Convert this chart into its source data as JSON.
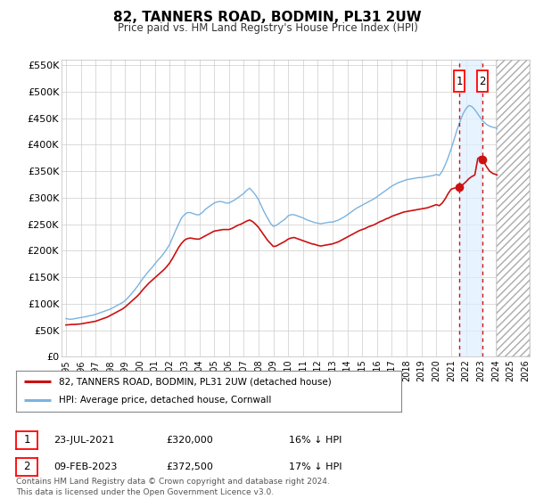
{
  "title": "82, TANNERS ROAD, BODMIN, PL31 2UW",
  "subtitle": "Price paid vs. HM Land Registry's House Price Index (HPI)",
  "ylim": [
    0,
    560000
  ],
  "xlim_start": 1994.7,
  "xlim_end": 2026.3,
  "hpi_color": "#7ab3e0",
  "price_color": "#cc1111",
  "transaction1_x": 2021.55,
  "transaction1_price": 320000,
  "transaction1_label": "1",
  "transaction2_x": 2023.12,
  "transaction2_price": 372500,
  "transaction2_label": "2",
  "shaded_region_start": 2021.55,
  "shaded_region_end": 2023.12,
  "future_hatch_start": 2024.1,
  "footer": "Contains HM Land Registry data © Crown copyright and database right 2024.\nThis data is licensed under the Open Government Licence v3.0.",
  "legend_line1": "82, TANNERS ROAD, BODMIN, PL31 2UW (detached house)",
  "legend_line2": "HPI: Average price, detached house, Cornwall",
  "table_row1": [
    "1",
    "23-JUL-2021",
    "£320,000",
    "16% ↓ HPI"
  ],
  "table_row2": [
    "2",
    "09-FEB-2023",
    "£372,500",
    "17% ↓ HPI"
  ],
  "hpi_data": [
    [
      1995.0,
      72000
    ],
    [
      1995.1,
      71500
    ],
    [
      1995.2,
      71000
    ],
    [
      1995.3,
      70800
    ],
    [
      1995.4,
      71000
    ],
    [
      1995.5,
      71500
    ],
    [
      1995.6,
      72000
    ],
    [
      1995.7,
      72500
    ],
    [
      1995.8,
      73000
    ],
    [
      1995.9,
      73500
    ],
    [
      1996.0,
      74000
    ],
    [
      1996.2,
      75000
    ],
    [
      1996.4,
      76000
    ],
    [
      1996.6,
      77500
    ],
    [
      1996.8,
      78500
    ],
    [
      1997.0,
      80000
    ],
    [
      1997.2,
      82000
    ],
    [
      1997.4,
      84000
    ],
    [
      1997.6,
      86000
    ],
    [
      1997.8,
      88000
    ],
    [
      1998.0,
      90000
    ],
    [
      1998.2,
      93000
    ],
    [
      1998.4,
      96000
    ],
    [
      1998.6,
      99000
    ],
    [
      1998.8,
      102000
    ],
    [
      1999.0,
      106000
    ],
    [
      1999.2,
      112000
    ],
    [
      1999.4,
      118000
    ],
    [
      1999.6,
      125000
    ],
    [
      1999.8,
      132000
    ],
    [
      2000.0,
      140000
    ],
    [
      2000.2,
      148000
    ],
    [
      2000.4,
      155000
    ],
    [
      2000.6,
      162000
    ],
    [
      2000.8,
      168000
    ],
    [
      2001.0,
      175000
    ],
    [
      2001.2,
      182000
    ],
    [
      2001.4,
      188000
    ],
    [
      2001.6,
      195000
    ],
    [
      2001.8,
      203000
    ],
    [
      2002.0,
      212000
    ],
    [
      2002.2,
      225000
    ],
    [
      2002.4,
      238000
    ],
    [
      2002.6,
      250000
    ],
    [
      2002.8,
      262000
    ],
    [
      2003.0,
      268000
    ],
    [
      2003.2,
      272000
    ],
    [
      2003.4,
      272000
    ],
    [
      2003.6,
      270000
    ],
    [
      2003.8,
      268000
    ],
    [
      2004.0,
      268000
    ],
    [
      2004.2,
      272000
    ],
    [
      2004.4,
      278000
    ],
    [
      2004.6,
      282000
    ],
    [
      2004.8,
      286000
    ],
    [
      2005.0,
      290000
    ],
    [
      2005.2,
      292000
    ],
    [
      2005.4,
      293000
    ],
    [
      2005.6,
      292000
    ],
    [
      2005.8,
      290000
    ],
    [
      2006.0,
      290000
    ],
    [
      2006.2,
      293000
    ],
    [
      2006.4,
      296000
    ],
    [
      2006.6,
      300000
    ],
    [
      2006.8,
      304000
    ],
    [
      2007.0,
      308000
    ],
    [
      2007.2,
      314000
    ],
    [
      2007.4,
      318000
    ],
    [
      2007.6,
      312000
    ],
    [
      2007.8,
      305000
    ],
    [
      2008.0,
      296000
    ],
    [
      2008.2,
      284000
    ],
    [
      2008.4,
      272000
    ],
    [
      2008.6,
      262000
    ],
    [
      2008.8,
      252000
    ],
    [
      2009.0,
      246000
    ],
    [
      2009.2,
      248000
    ],
    [
      2009.4,
      252000
    ],
    [
      2009.6,
      256000
    ],
    [
      2009.8,
      260000
    ],
    [
      2010.0,
      266000
    ],
    [
      2010.2,
      268000
    ],
    [
      2010.4,
      268000
    ],
    [
      2010.6,
      266000
    ],
    [
      2010.8,
      264000
    ],
    [
      2011.0,
      262000
    ],
    [
      2011.2,
      259000
    ],
    [
      2011.4,
      257000
    ],
    [
      2011.6,
      255000
    ],
    [
      2011.8,
      253000
    ],
    [
      2012.0,
      252000
    ],
    [
      2012.2,
      251000
    ],
    [
      2012.4,
      252000
    ],
    [
      2012.6,
      253000
    ],
    [
      2012.8,
      254000
    ],
    [
      2013.0,
      254000
    ],
    [
      2013.2,
      256000
    ],
    [
      2013.4,
      258000
    ],
    [
      2013.6,
      261000
    ],
    [
      2013.8,
      264000
    ],
    [
      2014.0,
      268000
    ],
    [
      2014.2,
      272000
    ],
    [
      2014.4,
      276000
    ],
    [
      2014.6,
      280000
    ],
    [
      2014.8,
      283000
    ],
    [
      2015.0,
      286000
    ],
    [
      2015.2,
      289000
    ],
    [
      2015.4,
      292000
    ],
    [
      2015.6,
      295000
    ],
    [
      2015.8,
      298000
    ],
    [
      2016.0,
      302000
    ],
    [
      2016.2,
      306000
    ],
    [
      2016.4,
      310000
    ],
    [
      2016.6,
      314000
    ],
    [
      2016.8,
      318000
    ],
    [
      2017.0,
      322000
    ],
    [
      2017.2,
      325000
    ],
    [
      2017.4,
      328000
    ],
    [
      2017.6,
      330000
    ],
    [
      2017.8,
      332000
    ],
    [
      2018.0,
      334000
    ],
    [
      2018.2,
      335000
    ],
    [
      2018.4,
      336000
    ],
    [
      2018.6,
      337000
    ],
    [
      2018.8,
      338000
    ],
    [
      2019.0,
      338000
    ],
    [
      2019.2,
      339000
    ],
    [
      2019.4,
      340000
    ],
    [
      2019.6,
      341000
    ],
    [
      2019.8,
      342000
    ],
    [
      2020.0,
      344000
    ],
    [
      2020.2,
      342000
    ],
    [
      2020.4,
      350000
    ],
    [
      2020.6,
      362000
    ],
    [
      2020.8,
      376000
    ],
    [
      2021.0,
      392000
    ],
    [
      2021.2,
      410000
    ],
    [
      2021.4,
      428000
    ],
    [
      2021.6,
      444000
    ],
    [
      2021.8,
      458000
    ],
    [
      2022.0,
      468000
    ],
    [
      2022.2,
      474000
    ],
    [
      2022.4,
      472000
    ],
    [
      2022.6,
      466000
    ],
    [
      2022.8,
      458000
    ],
    [
      2023.0,
      450000
    ],
    [
      2023.2,
      443000
    ],
    [
      2023.4,
      438000
    ],
    [
      2023.6,
      435000
    ],
    [
      2023.8,
      433000
    ],
    [
      2024.0,
      432000
    ],
    [
      2024.1,
      430000
    ]
  ],
  "price_data": [
    [
      1995.0,
      60000
    ],
    [
      1995.2,
      60500
    ],
    [
      1995.4,
      61000
    ],
    [
      1995.6,
      61000
    ],
    [
      1995.8,
      61500
    ],
    [
      1996.0,
      62000
    ],
    [
      1996.2,
      63000
    ],
    [
      1996.4,
      64000
    ],
    [
      1996.6,
      65000
    ],
    [
      1996.8,
      66000
    ],
    [
      1997.0,
      67000
    ],
    [
      1997.2,
      69000
    ],
    [
      1997.4,
      71000
    ],
    [
      1997.6,
      73000
    ],
    [
      1997.8,
      75000
    ],
    [
      1998.0,
      78000
    ],
    [
      1998.2,
      81000
    ],
    [
      1998.4,
      84000
    ],
    [
      1998.6,
      87000
    ],
    [
      1998.8,
      90000
    ],
    [
      1999.0,
      94000
    ],
    [
      1999.2,
      99000
    ],
    [
      1999.4,
      104000
    ],
    [
      1999.6,
      109000
    ],
    [
      1999.8,
      114000
    ],
    [
      2000.0,
      120000
    ],
    [
      2000.2,
      127000
    ],
    [
      2000.4,
      133000
    ],
    [
      2000.6,
      139000
    ],
    [
      2000.8,
      144000
    ],
    [
      2001.0,
      149000
    ],
    [
      2001.2,
      154000
    ],
    [
      2001.4,
      159000
    ],
    [
      2001.6,
      164000
    ],
    [
      2001.8,
      170000
    ],
    [
      2002.0,
      177000
    ],
    [
      2002.2,
      186000
    ],
    [
      2002.4,
      196000
    ],
    [
      2002.6,
      206000
    ],
    [
      2002.8,
      214000
    ],
    [
      2003.0,
      220000
    ],
    [
      2003.2,
      223000
    ],
    [
      2003.4,
      224000
    ],
    [
      2003.6,
      223000
    ],
    [
      2003.8,
      222000
    ],
    [
      2004.0,
      222000
    ],
    [
      2004.2,
      225000
    ],
    [
      2004.4,
      228000
    ],
    [
      2004.6,
      231000
    ],
    [
      2004.8,
      234000
    ],
    [
      2005.0,
      237000
    ],
    [
      2005.2,
      238000
    ],
    [
      2005.4,
      239000
    ],
    [
      2005.6,
      240000
    ],
    [
      2005.8,
      240000
    ],
    [
      2006.0,
      240000
    ],
    [
      2006.2,
      242000
    ],
    [
      2006.4,
      245000
    ],
    [
      2006.6,
      248000
    ],
    [
      2006.8,
      250000
    ],
    [
      2007.0,
      253000
    ],
    [
      2007.2,
      256000
    ],
    [
      2007.4,
      258000
    ],
    [
      2007.6,
      255000
    ],
    [
      2007.8,
      250000
    ],
    [
      2008.0,
      244000
    ],
    [
      2008.2,
      236000
    ],
    [
      2008.4,
      228000
    ],
    [
      2008.6,
      220000
    ],
    [
      2008.8,
      214000
    ],
    [
      2009.0,
      208000
    ],
    [
      2009.2,
      209000
    ],
    [
      2009.4,
      212000
    ],
    [
      2009.6,
      215000
    ],
    [
      2009.8,
      218000
    ],
    [
      2010.0,
      222000
    ],
    [
      2010.2,
      224000
    ],
    [
      2010.4,
      225000
    ],
    [
      2010.6,
      223000
    ],
    [
      2010.8,
      221000
    ],
    [
      2011.0,
      219000
    ],
    [
      2011.2,
      217000
    ],
    [
      2011.4,
      215000
    ],
    [
      2011.6,
      213000
    ],
    [
      2011.8,
      212000
    ],
    [
      2012.0,
      210000
    ],
    [
      2012.2,
      209000
    ],
    [
      2012.4,
      210000
    ],
    [
      2012.6,
      211000
    ],
    [
      2012.8,
      212000
    ],
    [
      2013.0,
      213000
    ],
    [
      2013.2,
      215000
    ],
    [
      2013.4,
      217000
    ],
    [
      2013.6,
      220000
    ],
    [
      2013.8,
      223000
    ],
    [
      2014.0,
      226000
    ],
    [
      2014.2,
      229000
    ],
    [
      2014.4,
      232000
    ],
    [
      2014.6,
      235000
    ],
    [
      2014.8,
      238000
    ],
    [
      2015.0,
      240000
    ],
    [
      2015.2,
      242000
    ],
    [
      2015.4,
      245000
    ],
    [
      2015.6,
      247000
    ],
    [
      2015.8,
      249000
    ],
    [
      2016.0,
      252000
    ],
    [
      2016.2,
      255000
    ],
    [
      2016.4,
      257000
    ],
    [
      2016.6,
      260000
    ],
    [
      2016.8,
      262000
    ],
    [
      2017.0,
      265000
    ],
    [
      2017.2,
      267000
    ],
    [
      2017.4,
      269000
    ],
    [
      2017.6,
      271000
    ],
    [
      2017.8,
      273000
    ],
    [
      2018.0,
      274000
    ],
    [
      2018.2,
      275000
    ],
    [
      2018.4,
      276000
    ],
    [
      2018.6,
      277000
    ],
    [
      2018.8,
      278000
    ],
    [
      2019.0,
      279000
    ],
    [
      2019.2,
      280000
    ],
    [
      2019.4,
      281000
    ],
    [
      2019.6,
      283000
    ],
    [
      2019.8,
      285000
    ],
    [
      2020.0,
      287000
    ],
    [
      2020.2,
      285000
    ],
    [
      2020.4,
      290000
    ],
    [
      2020.6,
      298000
    ],
    [
      2020.8,
      308000
    ],
    [
      2021.0,
      316000
    ],
    [
      2021.2,
      318000
    ],
    [
      2021.4,
      319000
    ],
    [
      2021.6,
      321000
    ],
    [
      2021.8,
      325000
    ],
    [
      2022.0,
      330000
    ],
    [
      2022.2,
      336000
    ],
    [
      2022.4,
      340000
    ],
    [
      2022.6,
      343000
    ],
    [
      2022.8,
      374000
    ],
    [
      2023.0,
      378000
    ],
    [
      2023.2,
      368000
    ],
    [
      2023.4,
      358000
    ],
    [
      2023.6,
      350000
    ],
    [
      2023.8,
      346000
    ],
    [
      2024.0,
      344000
    ],
    [
      2024.1,
      343000
    ]
  ]
}
